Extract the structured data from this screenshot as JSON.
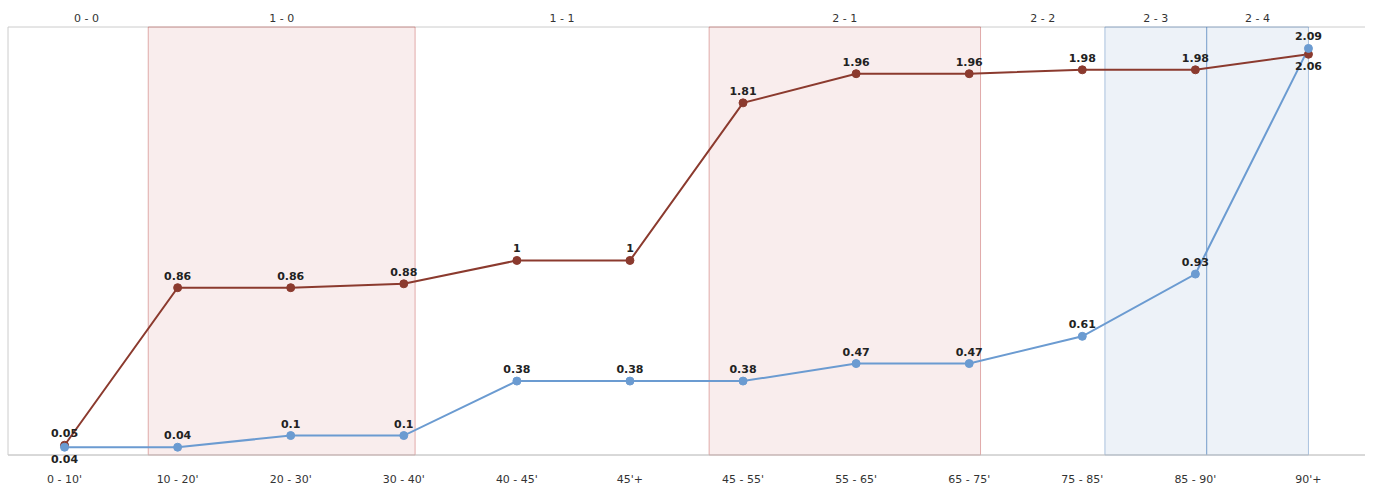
{
  "chart_data": {
    "type": "line",
    "categories": [
      "0 - 10'",
      "10 - 20'",
      "20 - 30'",
      "30 - 40'",
      "40 - 45'",
      "45'+",
      "45 - 55'",
      "55 - 65'",
      "65 - 75'",
      "75 - 85'",
      "85 - 90'",
      "90'+"
    ],
    "xlim": [
      -0.5,
      11.5
    ],
    "ylim": [
      0,
      2.2
    ],
    "yticks": [
      0,
      0.5,
      1,
      1.5,
      2
    ],
    "grid": true,
    "tick_labels": "x",
    "data_labels": true,
    "series": [
      {
        "color": "#8b3a2e",
        "marker": "circle",
        "values": [
          0.05,
          0.86,
          0.86,
          0.88,
          1,
          1,
          1.81,
          1.96,
          1.96,
          1.98,
          1.98,
          2.06
        ]
      },
      {
        "color": "#6b9bd1",
        "marker": "circle",
        "values": [
          0.04,
          0.04,
          0.1,
          0.1,
          0.38,
          0.38,
          0.38,
          0.47,
          0.47,
          0.61,
          0.93,
          2.09
        ]
      }
    ],
    "periods": [
      {
        "label": "0 - 0",
        "start": -0.35,
        "end": 0.74,
        "color": null
      },
      {
        "label": "1 - 0",
        "start": 0.74,
        "end": 3.1,
        "color": "#c0504d"
      },
      {
        "label": "1 - 1",
        "start": 3.1,
        "end": 5.7,
        "color": null
      },
      {
        "label": "2 - 1",
        "start": 5.7,
        "end": 8.1,
        "color": "#c0504d"
      },
      {
        "label": "2 - 2",
        "start": 8.1,
        "end": 9.2,
        "color": null
      },
      {
        "label": "2 - 3",
        "start": 9.2,
        "end": 10.1,
        "color": "#4f81bd"
      },
      {
        "label": "2 - 4",
        "start": 10.1,
        "end": 11,
        "color": "#4f81bd"
      }
    ]
  }
}
